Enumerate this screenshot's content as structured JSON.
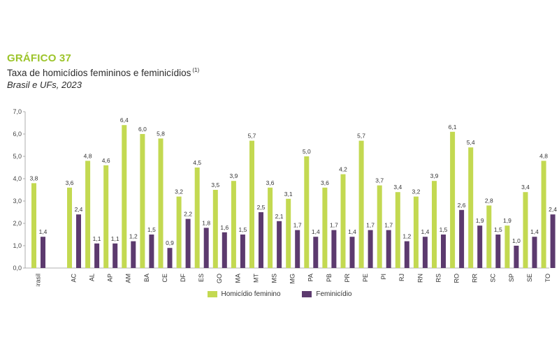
{
  "header": {
    "label": "GRÁFICO 37",
    "title": "Taxa de homicídios femininos e feminicídios",
    "footnote": "(1)",
    "subtitle": "Brasil e UFs, 2023"
  },
  "colors": {
    "homicidio": "#c3d951",
    "feminicidio": "#5c3a6e",
    "label_accent": "#9cc42a"
  },
  "chart_data": {
    "type": "bar",
    "categories": [
      "Brasil",
      "AC",
      "AL",
      "AP",
      "AM",
      "BA",
      "CE",
      "DF",
      "ES",
      "GO",
      "MA",
      "MT",
      "MS",
      "MG",
      "PA",
      "PB",
      "PR",
      "PE",
      "PI",
      "RJ",
      "RN",
      "RS",
      "RO",
      "RR",
      "SC",
      "SP",
      "SE",
      "TO"
    ],
    "series": [
      {
        "name": "Homicídio feminino",
        "values": [
          3.8,
          3.6,
          4.8,
          4.6,
          6.4,
          6.0,
          5.8,
          3.2,
          4.5,
          3.5,
          3.9,
          5.7,
          3.6,
          3.1,
          5.0,
          3.6,
          4.2,
          5.7,
          3.7,
          3.4,
          3.2,
          3.9,
          6.1,
          5.4,
          2.8,
          1.9,
          3.4,
          4.8
        ]
      },
      {
        "name": "Feminicídio",
        "values": [
          1.4,
          2.4,
          1.1,
          1.1,
          1.2,
          1.5,
          0.9,
          2.2,
          1.8,
          1.6,
          1.5,
          2.5,
          2.1,
          1.7,
          1.4,
          1.7,
          1.4,
          1.7,
          1.7,
          1.2,
          1.4,
          1.5,
          2.6,
          1.9,
          1.5,
          1.0,
          1.4,
          2.4
        ]
      }
    ],
    "value_labels": [
      [
        "3,8",
        "3,6",
        "4,8",
        "4,6",
        "6,4",
        "6,0",
        "5,8",
        "3,2",
        "4,5",
        "3,5",
        "3,9",
        "5,7",
        "3,6",
        "3,1",
        "5,0",
        "3,6",
        "4,2",
        "5,7",
        "3,7",
        "3,4",
        "3,2",
        "3,9",
        "6,1",
        "5,4",
        "2,8",
        "1,9",
        "3,4",
        "4,8"
      ],
      [
        "1,4",
        "2,4",
        "1,1",
        "1,1",
        "1,2",
        "1,5",
        "0,9",
        "2,2",
        "1,8",
        "1,6",
        "1,5",
        "2,5",
        "2,1",
        "1,7",
        "1,4",
        "1,7",
        "1,4",
        "1,7",
        "1,7",
        "1,2",
        "1,4",
        "1,5",
        "2,6",
        "1,9",
        "1,5",
        "1,0",
        "1,4",
        "2,4"
      ]
    ],
    "ylim": [
      0,
      7
    ],
    "yticks": [
      0,
      1,
      2,
      3,
      4,
      5,
      6,
      7
    ],
    "ytick_labels": [
      "0,0",
      "1,0",
      "2,0",
      "3,0",
      "4,0",
      "5,0",
      "6,0",
      "7,0"
    ],
    "grid": false,
    "legend_position": "bottom"
  }
}
